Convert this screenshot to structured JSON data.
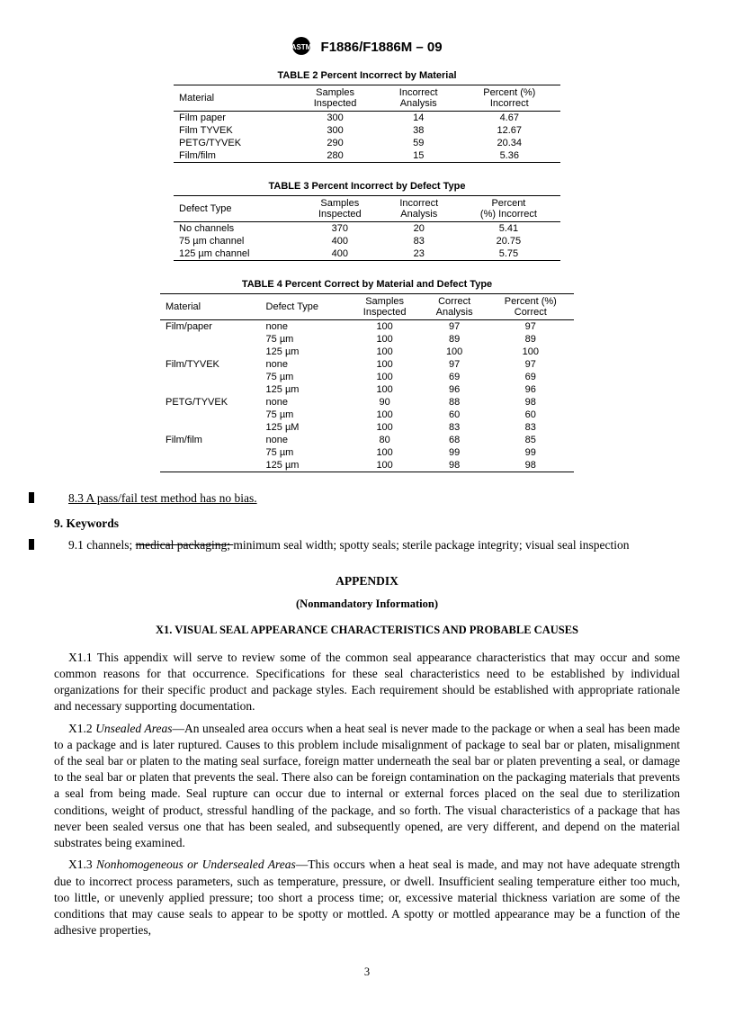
{
  "header": {
    "designation": "F1886/F1886M – 09"
  },
  "table2": {
    "title": "TABLE 2  Percent Incorrect by Material",
    "headers": [
      "Material",
      "Samples\nInspected",
      "Incorrect\nAnalysis",
      "Percent (%)\nIncorrect"
    ],
    "rows": [
      [
        "Film paper",
        "300",
        "14",
        "4.67"
      ],
      [
        "Film TYVEK",
        "300",
        "38",
        "12.67"
      ],
      [
        "PETG/TYVEK",
        "290",
        "59",
        "20.34"
      ],
      [
        "Film/film",
        "280",
        "15",
        "5.36"
      ]
    ]
  },
  "table3": {
    "title": "TABLE 3  Percent Incorrect by Defect Type",
    "headers": [
      "Defect Type",
      "Samples\nInspected",
      "Incorrect\nAnalysis",
      "Percent\n(%) Incorrect"
    ],
    "rows": [
      [
        "No channels",
        "370",
        "20",
        "5.41"
      ],
      [
        "75 µm channel",
        "400",
        "83",
        "20.75"
      ],
      [
        "125 µm channel",
        "400",
        "23",
        "5.75"
      ]
    ]
  },
  "table4": {
    "title": "TABLE 4  Percent Correct by Material and Defect Type",
    "headers": [
      "Material",
      "Defect Type",
      "Samples\nInspected",
      "Correct\nAnalysis",
      "Percent (%)\nCorrect"
    ],
    "rows": [
      [
        "Film/paper",
        "none",
        "100",
        "97",
        "97"
      ],
      [
        "",
        "75 µm",
        "100",
        "89",
        "89"
      ],
      [
        "",
        "125 µm",
        "100",
        "100",
        "100"
      ],
      [
        "Film/TYVEK",
        "none",
        "100",
        "97",
        "97"
      ],
      [
        "",
        "75 µm",
        "100",
        "69",
        "69"
      ],
      [
        "",
        "125 µm",
        "100",
        "96",
        "96"
      ],
      [
        "PETG/TYVEK",
        "none",
        "90",
        "88",
        "98"
      ],
      [
        "",
        "75 µm",
        "100",
        "60",
        "60"
      ],
      [
        "",
        "125 µM",
        "100",
        "83",
        "83"
      ],
      [
        "Film/film",
        "none",
        "80",
        "68",
        "85"
      ],
      [
        "",
        "75 µm",
        "100",
        "99",
        "99"
      ],
      [
        "",
        "125 µm",
        "100",
        "98",
        "98"
      ]
    ]
  },
  "text": {
    "s8_3": "8.3  A pass/fail test method has no bias.",
    "s9_head": "9.  Keywords",
    "s9_1_a": "9.1  channels; ",
    "s9_1_strike": "medical packaging; ",
    "s9_1_b": "minimum seal width; spotty seals; sterile package integrity; visual seal inspection",
    "appendix": "APPENDIX",
    "nonmand": "(Nonmandatory Information)",
    "x1_title": "X1.  VISUAL SEAL APPEARANCE CHARACTERISTICS AND PROBABLE CAUSES",
    "x1_1": "X1.1   This appendix will serve to review some of the common seal appearance characteristics that may occur and some common reasons for that occurrence. Specifications for these seal characteristics need to be established by individual organizations for their specific product and package styles. Each requirement should be established with appropriate rationale and necessary supporting documentation.",
    "x1_2_lead": "X1.2  ",
    "x1_2_em": "Unsealed Areas",
    "x1_2_body": "—An unsealed area occurs when a heat seal is never made to the package or when a seal has been made to a package and is later ruptured. Causes to this problem include misalignment of package to seal bar or platen, misalignment of the seal bar or platen to the mating seal surface, foreign matter underneath the seal bar or platen preventing a seal, or damage to the seal bar or platen that prevents the seal. There also can be foreign contamination on the packaging materials that prevents a seal from being made. Seal rupture can occur due to internal or external forces placed on the seal due to sterilization conditions, weight of product, stressful handling of the package, and so forth. The visual characteristics of a package that has never been sealed versus one that has been sealed, and subsequently opened, are very different, and depend on the material substrates being examined.",
    "x1_3_lead": "X1.3  ",
    "x1_3_em": "Nonhomogeneous or Undersealed Areas",
    "x1_3_body": "—This occurs when a heat seal is made, and may not have adequate strength due to incorrect process parameters, such as temperature, pressure, or dwell. Insufficient sealing temperature either too much, too little, or unevenly applied pressure; too short a process time; or, excessive material thickness variation are some of the conditions that may cause seals to appear to be spotty or mottled. A spotty or mottled appearance may be a function of the adhesive properties,",
    "pagenum": "3"
  }
}
